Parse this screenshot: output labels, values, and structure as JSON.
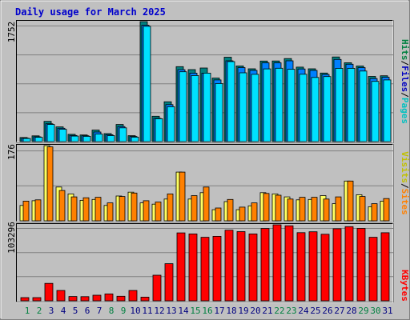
{
  "chart_data": {
    "type": "bar",
    "title": "Daily usage for March 2025",
    "days": [
      "1",
      "2",
      "3",
      "4",
      "5",
      "6",
      "7",
      "8",
      "9",
      "10",
      "11",
      "12",
      "13",
      "14",
      "15",
      "16",
      "17",
      "18",
      "19",
      "20",
      "21",
      "22",
      "23",
      "24",
      "25",
      "26",
      "27",
      "28",
      "29",
      "30",
      "31"
    ],
    "weekend_days": [
      "1",
      "2",
      "8",
      "9",
      "15",
      "16",
      "22",
      "23",
      "29",
      "30"
    ],
    "panels": [
      {
        "id": "top",
        "ymax": 1752,
        "ymax_label": "1752",
        "side_labels": [
          {
            "text": "Hits",
            "color": "#008040"
          },
          {
            "text": "/",
            "color": "#000000"
          },
          {
            "text": "Files",
            "color": "#0000c0"
          },
          {
            "text": "/",
            "color": "#000000"
          },
          {
            "text": "Pages",
            "color": "#00c0c0"
          }
        ],
        "series": [
          {
            "name": "Hits",
            "color": "#008080",
            "values": [
              60,
              84,
              296,
              215,
              106,
              97,
              168,
              117,
              250,
              87,
              1752,
              370,
              582,
              1095,
              1051,
              1074,
              927,
              1232,
              1105,
              1063,
              1176,
              1177,
              1212,
              1087,
              1063,
              1001,
              1236,
              1152,
              1104,
              952,
              961
            ]
          },
          {
            "name": "Files",
            "color": "#0080ff",
            "values": [
              50,
              70,
              260,
              195,
              90,
              85,
              140,
              100,
              220,
              75,
              1700,
              340,
              540,
              1050,
              1000,
              1000,
              900,
              1180,
              1080,
              1040,
              1150,
              1150,
              1180,
              1060,
              1040,
              980,
              1200,
              1130,
              1080,
              920,
              940
            ]
          },
          {
            "name": "Pages",
            "color": "#00e0ff",
            "values": [
              45,
              63,
              250,
              180,
              81,
              77,
              110,
              88,
              201,
              65,
              1683,
              334,
              509,
              1020,
              965,
              1000,
              848,
              1168,
              1005,
              982,
              1062,
              1071,
              1056,
              983,
              937,
              950,
              1070,
              1070,
              1030,
              880,
              900
            ]
          }
        ]
      },
      {
        "id": "middle",
        "ymax": 176,
        "ymax_label": "176",
        "side_labels": [
          {
            "text": "Visits",
            "color": "#c0c000"
          },
          {
            "text": "/",
            "color": "#000000"
          },
          {
            "text": "Sites",
            "color": "#ff8000"
          }
        ],
        "series": [
          {
            "name": "Visits",
            "color": "#ffff60",
            "values": [
              36,
              47,
              176,
              79,
              63,
              48,
              50,
              36,
              58,
              67,
              42,
              39,
              51,
              114,
              51,
              66,
              26,
              45,
              26,
              35,
              66,
              63,
              56,
              49,
              50,
              59,
              40,
              93,
              61,
              33,
              46
            ]
          },
          {
            "name": "Sites",
            "color": "#ff8000",
            "values": [
              46,
              49,
              173,
              71,
              56,
              54,
              55,
              42,
              57,
              65,
              47,
              44,
              63,
              114,
              59,
              79,
              30,
              50,
              32,
              42,
              64,
              60,
              51,
              55,
              55,
              51,
              56,
              93,
              57,
              40,
              52
            ]
          }
        ]
      },
      {
        "id": "bottom",
        "ymax": 103296,
        "ymax_label": "103296",
        "side_labels": [
          {
            "text": "KBytes",
            "color": "#ff0000"
          }
        ],
        "series": [
          {
            "name": "KBytes",
            "color": "#ff0000",
            "values": [
              4400,
              4400,
              23700,
              14000,
              5900,
              5700,
              7600,
              9300,
              6200,
              14000,
              5000,
              34800,
              50500,
              92300,
              90900,
              86300,
              87600,
              96000,
              94000,
              90900,
              98300,
              103296,
              102000,
              92600,
              93800,
              90500,
              98000,
              100800,
              98400,
              86300,
              92500
            ]
          }
        ]
      }
    ]
  }
}
